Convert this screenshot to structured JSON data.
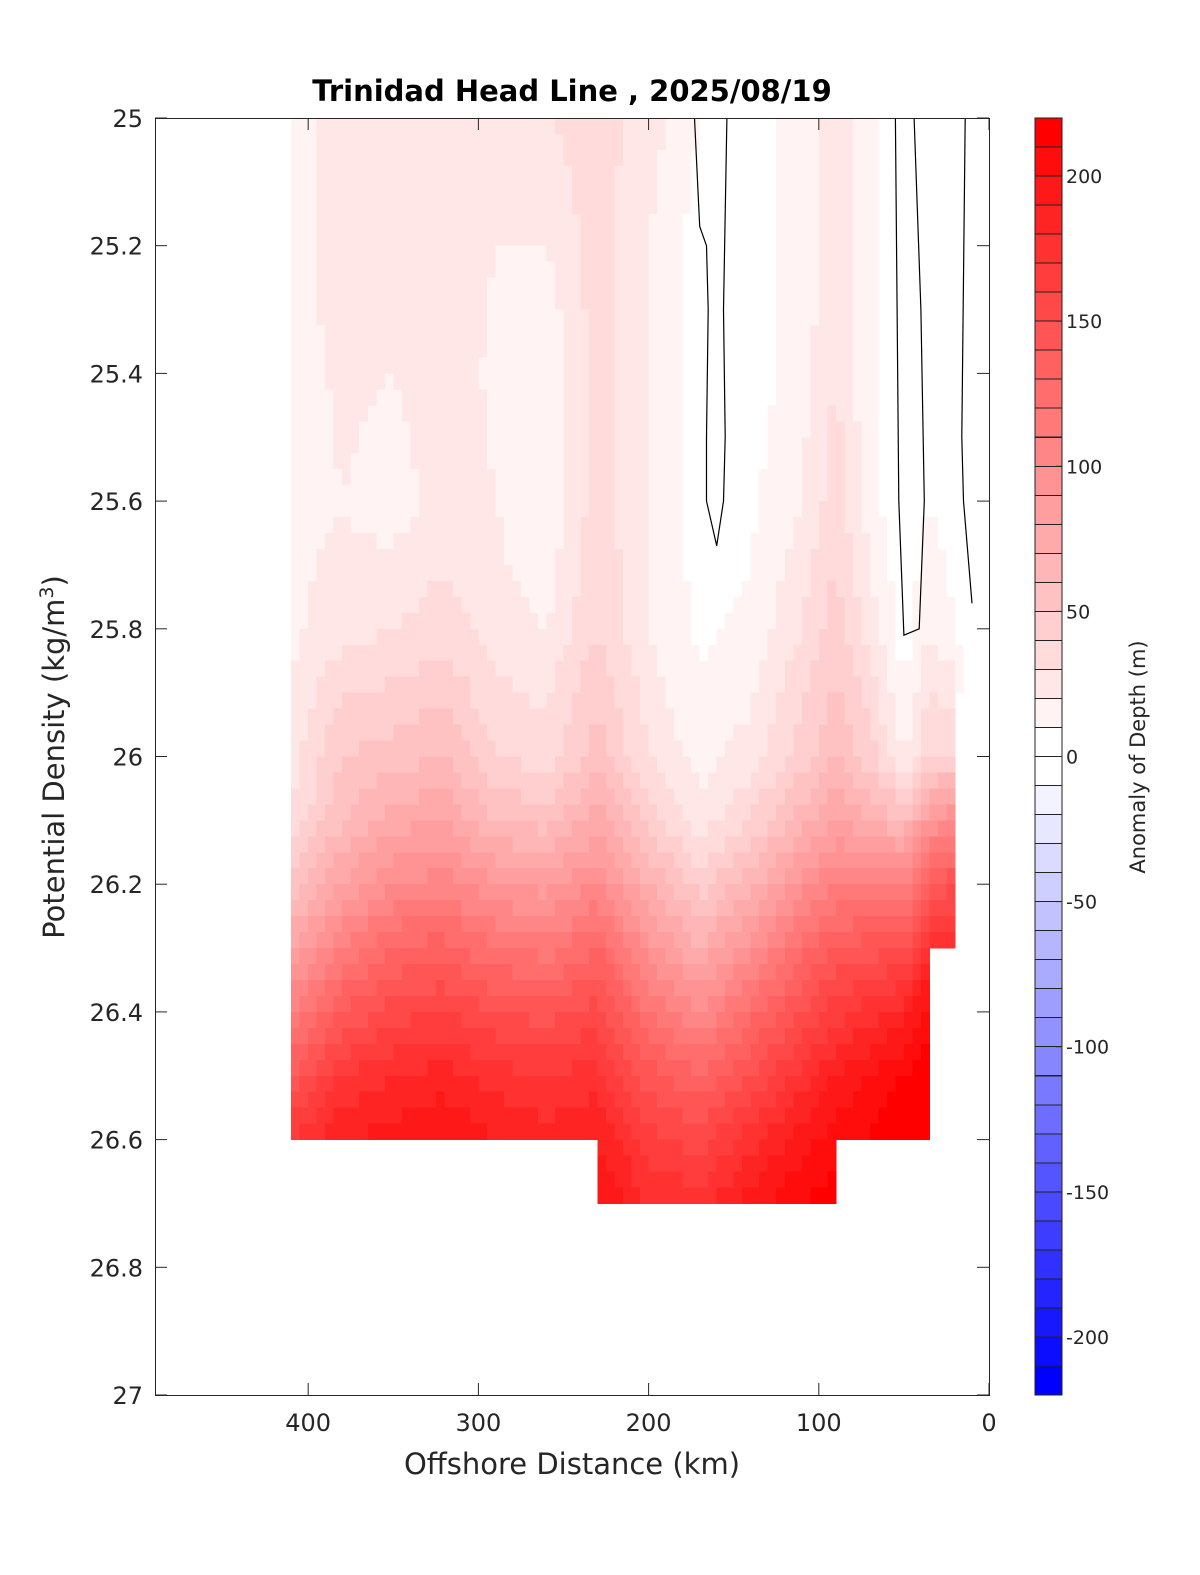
{
  "chart_data": {
    "type": "contour",
    "title": "Trinidad Head Line , 2025/08/19",
    "xlabel": "Offshore Distance (km)",
    "ylabel": "Potential Density (kg/m^3)",
    "ylabel_main": "Potential Density (kg/m",
    "ylabel_sup": "3",
    "ylabel_end": ")",
    "colorbar_label": "Anomaly of Depth (m)",
    "xlim": [
      490,
      0
    ],
    "ylim": [
      25,
      27
    ],
    "x_reversed": true,
    "y_reversed": true,
    "xticks": [
      "400",
      "300",
      "200",
      "100",
      "0"
    ],
    "xtick_values": [
      400,
      300,
      200,
      100,
      0
    ],
    "yticks": [
      "25",
      "25.2",
      "25.4",
      "25.6",
      "25.8",
      "26",
      "26.2",
      "26.4",
      "26.6",
      "26.8",
      "27"
    ],
    "ytick_values": [
      25,
      25.2,
      25.4,
      25.6,
      25.8,
      26,
      26.2,
      26.4,
      26.6,
      26.8,
      27
    ],
    "colorbar_range": [
      -220,
      220
    ],
    "colorbar_step": 10,
    "colorbar_ticks": [
      "200",
      "150",
      "100",
      "50",
      "0",
      "-50",
      "-100",
      "-150",
      "-200"
    ],
    "colorbar_tick_values": [
      200,
      150,
      100,
      50,
      0,
      -50,
      -100,
      -150,
      -200
    ],
    "colormap": {
      "negative": "#0000ff",
      "zero": "#ffffff",
      "positive": "#ff0000"
    },
    "x": [
      410,
      380,
      350,
      320,
      290,
      260,
      230,
      200,
      170,
      140,
      110,
      90,
      70,
      50,
      35,
      20,
      10
    ],
    "y": [
      25.0,
      25.1,
      25.2,
      25.3,
      25.4,
      25.5,
      25.6,
      25.7,
      25.8,
      25.9,
      26.0,
      26.1,
      26.2,
      26.3,
      26.4,
      26.5,
      26.6,
      26.7
    ],
    "z_by_column": [
      [
        15,
        15,
        15,
        15,
        15,
        15,
        15,
        18,
        18,
        20,
        25,
        30,
        50,
        80,
        110,
        140,
        170,
        190
      ],
      [
        25,
        25,
        25,
        24,
        22,
        21,
        20,
        22,
        25,
        40,
        50,
        60,
        80,
        110,
        140,
        170,
        190,
        null
      ],
      [
        30,
        28,
        25,
        22,
        20,
        18,
        15,
        22,
        30,
        42,
        55,
        75,
        100,
        130,
        155,
        180,
        195,
        null
      ],
      [
        30,
        28,
        25,
        25,
        25,
        25,
        25,
        30,
        35,
        48,
        60,
        80,
        105,
        135,
        160,
        185,
        200,
        null
      ],
      [
        20,
        20,
        20,
        19,
        18,
        19,
        20,
        22,
        25,
        32,
        40,
        60,
        90,
        120,
        150,
        175,
        190,
        null
      ],
      [
        30,
        25,
        20,
        15,
        12,
        10,
        10,
        15,
        20,
        28,
        35,
        55,
        85,
        115,
        145,
        170,
        185,
        null
      ],
      [
        35,
        35,
        35,
        35,
        35,
        35,
        35,
        38,
        40,
        48,
        55,
        75,
        100,
        130,
        155,
        175,
        190,
        200
      ],
      [
        25,
        22,
        20,
        20,
        20,
        20,
        20,
        20,
        20,
        25,
        30,
        45,
        70,
        95,
        120,
        145,
        165,
        180
      ],
      [
        10,
        7,
        5,
        5,
        5,
        5,
        5,
        6,
        8,
        11,
        15,
        25,
        45,
        70,
        100,
        130,
        155,
        175
      ],
      [
        5,
        5,
        5,
        5,
        5,
        6,
        8,
        10,
        12,
        18,
        25,
        40,
        65,
        95,
        125,
        150,
        175,
        195
      ],
      [
        15,
        15,
        15,
        15,
        15,
        18,
        20,
        25,
        30,
        38,
        45,
        65,
        95,
        125,
        150,
        175,
        195,
        210
      ],
      [
        25,
        25,
        25,
        28,
        30,
        33,
        36,
        40,
        45,
        52,
        60,
        80,
        110,
        140,
        165,
        190,
        205,
        215
      ],
      [
        15,
        15,
        15,
        14,
        12,
        13,
        15,
        20,
        25,
        35,
        45,
        70,
        110,
        145,
        175,
        200,
        210,
        null
      ],
      [
        0,
        0,
        0,
        0,
        0,
        0,
        0,
        2,
        5,
        10,
        20,
        60,
        110,
        150,
        185,
        210,
        220,
        null
      ],
      [
        5,
        5,
        5,
        5,
        5,
        8,
        10,
        15,
        20,
        30,
        40,
        90,
        140,
        175,
        205,
        220,
        225,
        null
      ],
      [
        10,
        9,
        8,
        7,
        6,
        5,
        5,
        7,
        10,
        25,
        40,
        100,
        150,
        175,
        null,
        null,
        null,
        null
      ],
      [
        0,
        0,
        0,
        0,
        0,
        0,
        0,
        0,
        0,
        0,
        null,
        null,
        null,
        null,
        null,
        null,
        null,
        null
      ]
    ],
    "zero_contours": [
      [
        [
          173,
          25.0
        ],
        [
          170,
          25.17
        ],
        [
          166,
          25.2
        ],
        [
          165,
          25.3
        ],
        [
          166,
          25.5
        ],
        [
          166,
          25.6
        ],
        [
          160,
          25.67
        ],
        [
          156,
          25.6
        ],
        [
          155,
          25.5
        ],
        [
          156,
          25.3
        ],
        [
          154,
          25.0
        ]
      ],
      [
        [
          55,
          25.0
        ],
        [
          54,
          25.3
        ],
        [
          53,
          25.6
        ],
        [
          50,
          25.81
        ],
        [
          41,
          25.8
        ],
        [
          38,
          25.6
        ],
        [
          40,
          25.3
        ],
        [
          44,
          25.0
        ]
      ],
      [
        [
          14,
          25.0
        ],
        [
          16,
          25.5
        ],
        [
          15,
          25.6
        ],
        [
          10,
          25.76
        ]
      ]
    ]
  }
}
